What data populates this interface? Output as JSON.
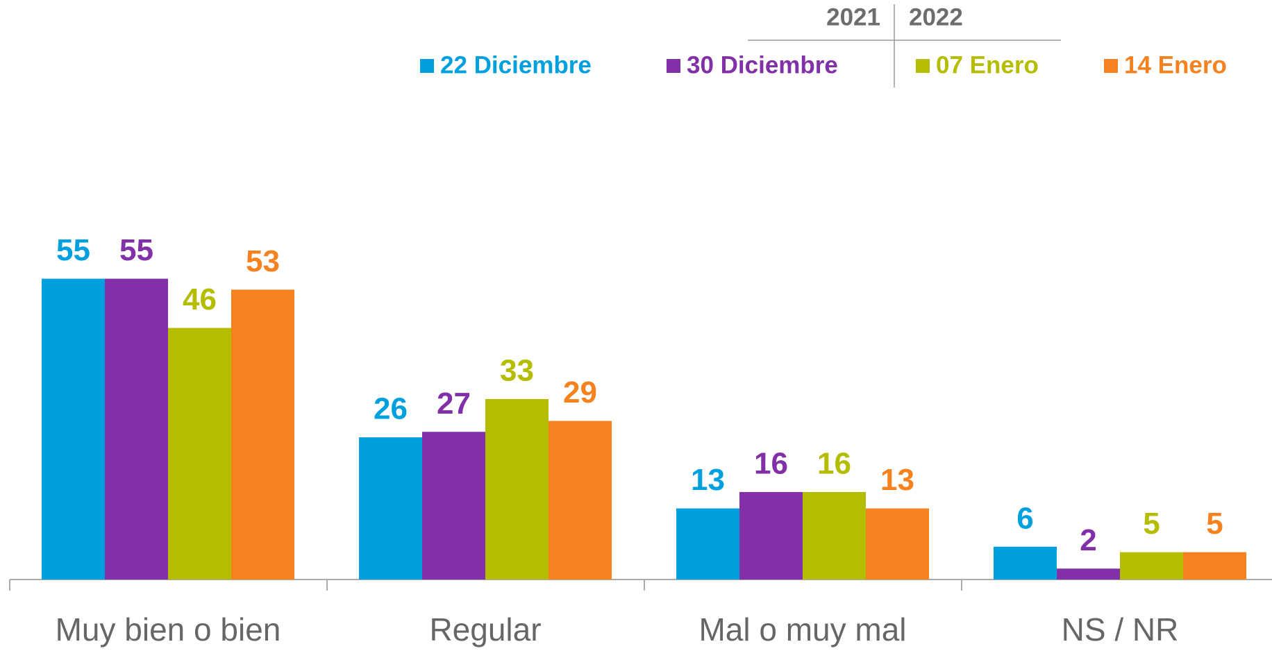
{
  "chart_data": {
    "type": "bar",
    "year_labels": [
      "2021",
      "2022"
    ],
    "categories": [
      "Muy bien o bien",
      "Regular",
      "Mal o muy mal",
      "NS / NR"
    ],
    "series": [
      {
        "name": "22 Diciembre",
        "color": "#00a0df",
        "values": [
          55,
          26,
          13,
          6
        ]
      },
      {
        "name": "30 Diciembre",
        "color": "#8230a8",
        "values": [
          55,
          27,
          16,
          2
        ]
      },
      {
        "name": "07 Enero",
        "color": "#b5bd00",
        "values": [
          46,
          33,
          16,
          5
        ]
      },
      {
        "name": "14 Enero",
        "color": "#f5821f",
        "values": [
          53,
          29,
          13,
          5
        ]
      }
    ]
  }
}
